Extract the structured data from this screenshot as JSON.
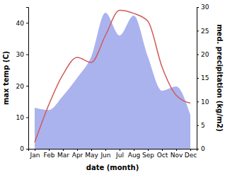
{
  "chart_data": {
    "type": "line",
    "x_label": "date (month)",
    "y_label": "max temp (C)",
    "y2_label": "med. precipitation (kg/m2)",
    "categories": [
      "Jan",
      "Feb",
      "Mar",
      "Apr",
      "May",
      "Jun",
      "Jul",
      "Aug",
      "Sep",
      "Oct",
      "Nov",
      "Dec"
    ],
    "series": [
      {
        "name": "med. precipitation",
        "type": "area",
        "axis": "y2",
        "color": "#aab3ee",
        "values": [
          8.7,
          8.2,
          11.2,
          15,
          19.5,
          28.8,
          24,
          28.2,
          19.5,
          12.3,
          13.2,
          7.2
        ]
      },
      {
        "name": "max temp",
        "type": "line",
        "color": "#d05a5a",
        "values": [
          2,
          14,
          23.6,
          29,
          27.4,
          36,
          44,
          43,
          40.5,
          26,
          17,
          14.5
        ]
      }
    ],
    "ylim": [
      0,
      45
    ],
    "yticks": [
      0,
      10,
      20,
      30,
      40
    ],
    "y2lim": [
      0,
      30
    ],
    "y2ticks": [
      0,
      5,
      10,
      15,
      20,
      25,
      30
    ],
    "grid": false
  }
}
